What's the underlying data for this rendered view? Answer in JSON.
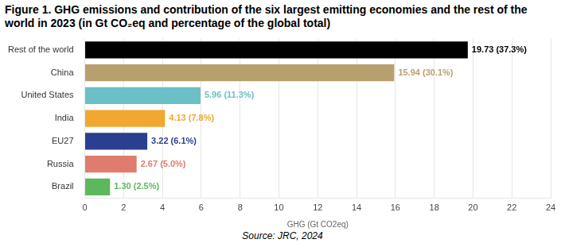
{
  "chart_data": {
    "type": "bar",
    "orientation": "horizontal",
    "title": "Figure 1.  GHG emissions and contribution of the six largest emitting economies and the rest of the world in 2023 (in Gt CO₂eq and percentage of the global total)",
    "categories": [
      "Rest of the world",
      "China",
      "United States",
      "India",
      "EU27",
      "Russia",
      "Brazil"
    ],
    "values": [
      19.73,
      15.94,
      5.96,
      4.13,
      3.22,
      2.67,
      1.3
    ],
    "value_labels": [
      "19.73 (37.3%)",
      "15.94 (30.1%)",
      "5.96 (11.3%)",
      "4.13 (7.8%)",
      "3.22 (6.1%)",
      "2.67 (5.0%)",
      "1.30 (2.5%)"
    ],
    "colors": [
      "#000000",
      "#b89f6e",
      "#6bbfc6",
      "#f0a830",
      "#2a3f8f",
      "#e07b6e",
      "#5cb85c"
    ],
    "x_label": "GHG (Gt CO2eq)",
    "xlim": [
      0,
      24
    ],
    "xticks": [
      0,
      2,
      4,
      6,
      8,
      10,
      12,
      14,
      16,
      18,
      20,
      22,
      24
    ],
    "grid": true,
    "data_labels": true,
    "caption": "Source: JRC, 2024"
  }
}
